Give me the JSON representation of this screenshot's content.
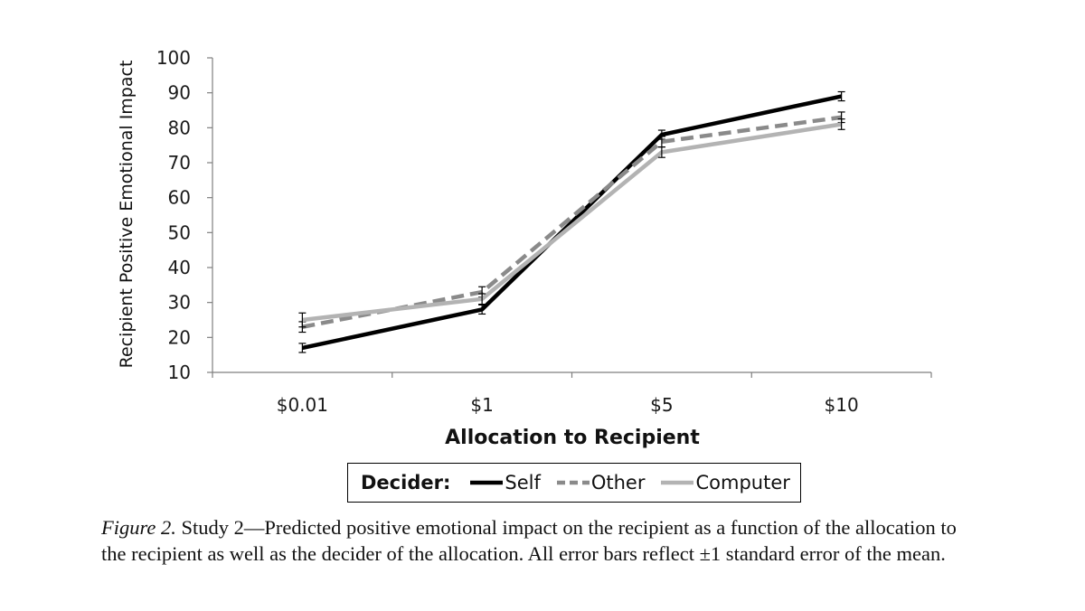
{
  "chart_data": {
    "type": "line",
    "categories": [
      "$0.01",
      "$1",
      "$5",
      "$10"
    ],
    "xlabel": "Allocation to Recipient",
    "ylabel": "Recipient Positive Emotional Impact",
    "ylim": [
      10,
      100
    ],
    "yticks": [
      10,
      20,
      30,
      40,
      50,
      60,
      70,
      80,
      90,
      100
    ],
    "grid": false,
    "legend_position": "bottom",
    "legend_title": "Decider:",
    "series": [
      {
        "name": "Self",
        "values": [
          17,
          28,
          78,
          89
        ],
        "errors": [
          1.3,
          1.3,
          1.3,
          1.3
        ],
        "color": "#000000",
        "dash": "solid"
      },
      {
        "name": "Other",
        "values": [
          23,
          33,
          76,
          83
        ],
        "errors": [
          1.5,
          1.5,
          1.5,
          1.5
        ],
        "color": "#8a8a8a",
        "dash": "dashed"
      },
      {
        "name": "Computer",
        "values": [
          25,
          31,
          73,
          81
        ],
        "errors": [
          2.0,
          1.5,
          1.5,
          1.5
        ],
        "color": "#b3b3b3",
        "dash": "solid"
      }
    ]
  },
  "caption": {
    "figure_label": "Figure 2.",
    "text": " Study 2—Predicted positive emotional impact on the recipient as a function of the allocation to the recipient as well as the decider of the allocation.  All error bars reflect ±1 standard error of the mean."
  }
}
